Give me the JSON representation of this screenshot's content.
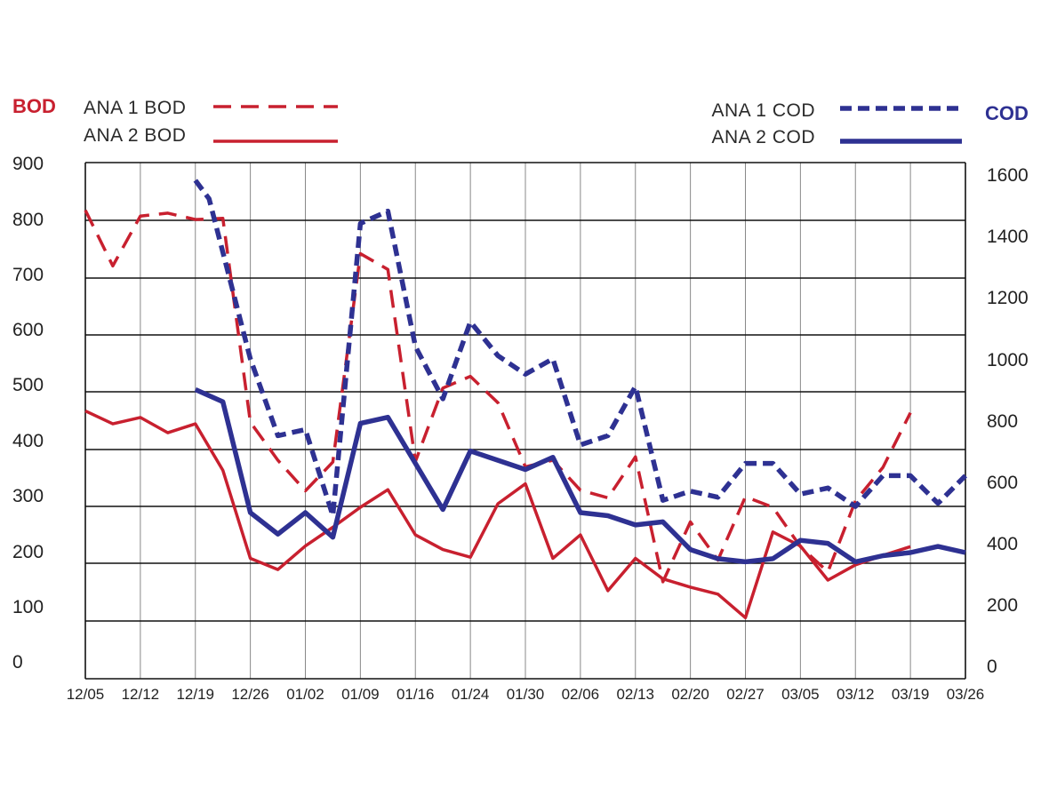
{
  "colors": {
    "bod": "#c8202f",
    "cod": "#2e3192",
    "grid": "#111111",
    "vgrid": "#888888"
  },
  "chart_data": {
    "type": "line",
    "x": [
      "12/05",
      "12/12",
      "12/19",
      "12/26",
      "01/02",
      "01/09",
      "01/16",
      "01/24",
      "01/30",
      "02/06",
      "02/13",
      "02/20",
      "02/27",
      "03/05",
      "03/12",
      "03/19",
      "03/26"
    ],
    "left_axis": {
      "title": "BOD",
      "ylim": [
        0,
        900
      ],
      "ticks": [
        "0",
        "100",
        "200",
        "300",
        "400",
        "500",
        "600",
        "700",
        "800",
        "900"
      ]
    },
    "right_axis": {
      "title": "COD",
      "ylim": [
        0,
        1600
      ],
      "ticks": [
        "0",
        "200",
        "400",
        "600",
        "800",
        "1000",
        "1200",
        "1400",
        "1600"
      ]
    },
    "grid": true,
    "series": [
      {
        "name": "ANA 1 BOD",
        "axis": "left",
        "style": "dashed",
        "x": [
          0,
          0.5,
          1,
          1.5,
          2,
          2.5,
          3,
          3.5,
          4,
          4.5,
          5,
          5.5,
          6,
          6.5,
          7,
          7.5,
          8,
          8.5,
          9,
          9.5,
          10,
          10.5,
          11,
          11.5,
          12,
          12.5,
          13,
          13.5,
          14,
          14.5,
          15
        ],
        "values": [
          798,
          703,
          788,
          793,
          782,
          784,
          437,
          372,
          320,
          369,
          724,
          697,
          370,
          495,
          515,
          470,
          361,
          372,
          321,
          308,
          378,
          165,
          267,
          202,
          310,
          292,
          225,
          182,
          303,
          360,
          453
        ]
      },
      {
        "name": "ANA 2 BOD",
        "axis": "left",
        "style": "solid",
        "x": [
          0,
          0.5,
          1,
          1.5,
          2,
          2.5,
          3,
          3.5,
          4,
          4.5,
          5,
          5.5,
          6,
          6.5,
          7,
          7.5,
          8,
          8.5,
          9,
          9.5,
          10,
          10.5,
          11,
          11.5,
          12,
          12.5,
          13,
          13.5,
          14,
          14.5,
          15
        ],
        "values": [
          456,
          434,
          445,
          419,
          434,
          355,
          205,
          186,
          226,
          258,
          292,
          322,
          245,
          220,
          207,
          298,
          332,
          205,
          245,
          150,
          205,
          170,
          156,
          144,
          104,
          250,
          226,
          168,
          194,
          210,
          225
        ]
      },
      {
        "name": "ANA 1 COD",
        "axis": "right",
        "style": "dashed",
        "x": [
          2,
          2.25,
          3,
          3.5,
          4,
          4.5,
          5,
          5.5,
          6,
          6.5,
          7,
          7.5,
          8,
          8.5,
          9,
          9.5,
          10,
          10.5,
          11,
          11.5,
          12,
          12.5,
          13,
          13.5,
          14,
          14.5,
          15,
          15.5,
          16
        ],
        "values": [
          1620,
          1560,
          1040,
          790,
          810,
          530,
          1480,
          1520,
          1080,
          910,
          1160,
          1050,
          990,
          1040,
          760,
          790,
          950,
          580,
          610,
          590,
          700,
          700,
          600,
          620,
          560,
          660,
          660,
          570,
          660
        ]
      },
      {
        "name": "ANA 2 COD",
        "axis": "right",
        "style": "solid",
        "x": [
          2,
          2.5,
          3,
          3.5,
          4,
          4.5,
          5,
          5.5,
          6,
          6.5,
          7,
          7.5,
          8,
          8.5,
          9,
          9.5,
          10,
          10.5,
          11,
          11.5,
          12,
          12.5,
          13,
          13.5,
          14,
          14.5,
          15,
          15.5,
          16
        ],
        "values": [
          940,
          900,
          540,
          470,
          540,
          460,
          830,
          850,
          700,
          550,
          740,
          710,
          680,
          720,
          540,
          530,
          500,
          510,
          420,
          390,
          380,
          390,
          450,
          440,
          380,
          400,
          410,
          430,
          410
        ]
      }
    ]
  }
}
